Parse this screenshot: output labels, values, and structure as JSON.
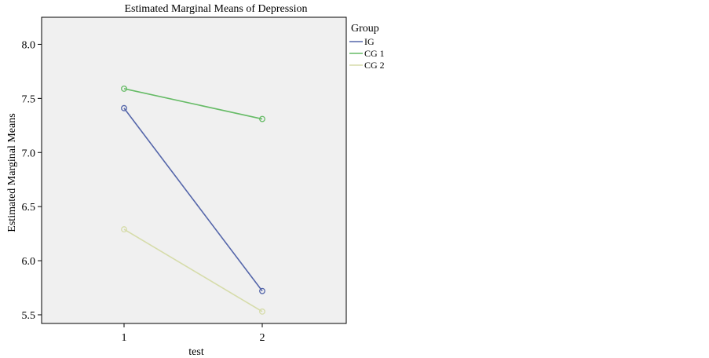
{
  "chart_data": {
    "type": "line",
    "title": "Estimated Marginal Means of Depression",
    "xlabel": "test",
    "ylabel": "Estimated Marginal Means",
    "categories": [
      "1",
      "2"
    ],
    "ylim": [
      5.42,
      8.25
    ],
    "yticks": [
      "5.5",
      "6.0",
      "6.5",
      "7.0",
      "7.5",
      "8.0"
    ],
    "legend": {
      "title": "Group",
      "placement": "right"
    },
    "series": [
      {
        "name": "IG",
        "values": [
          7.41,
          5.72
        ],
        "color": "#5566aa"
      },
      {
        "name": "CG 1",
        "values": [
          7.59,
          7.31
        ],
        "color": "#66bb66"
      },
      {
        "name": "CG 2",
        "values": [
          6.29,
          5.53
        ],
        "color": "#d6dcaa"
      }
    ],
    "plot_background": "#f0f0f0",
    "grid": false
  }
}
